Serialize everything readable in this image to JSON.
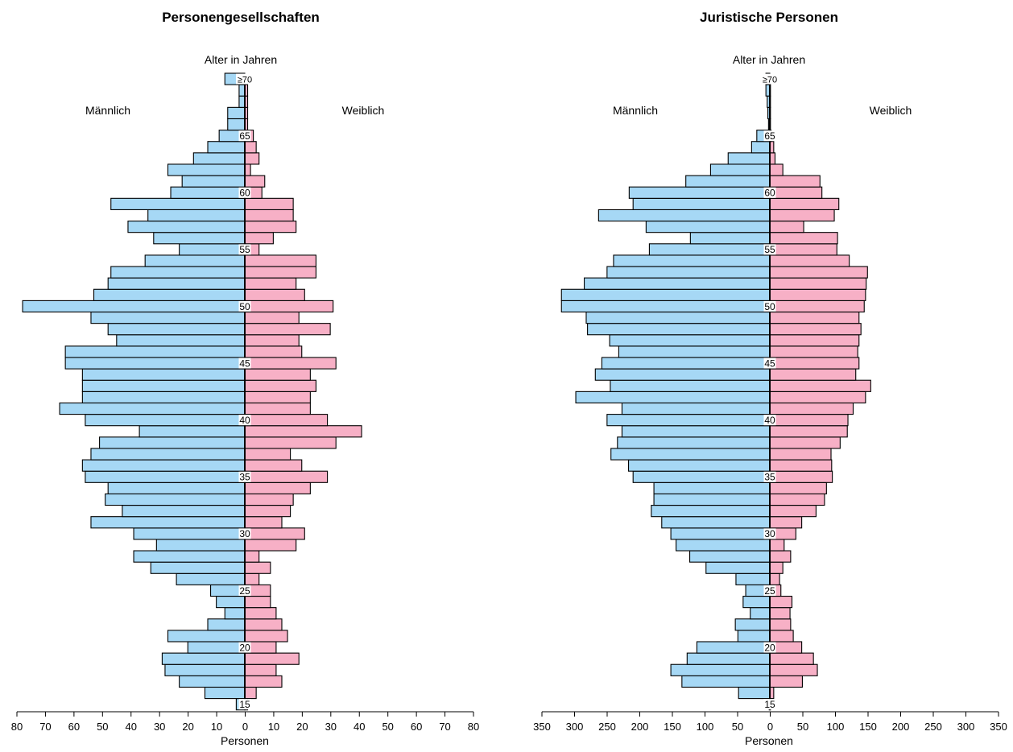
{
  "chart_data": [
    {
      "type": "bar",
      "orientation": "population-pyramid",
      "title": "Personengesellschaften",
      "age_axis_label": "Alter in Jahren",
      "left_label": "Männlich",
      "right_label": "Weiblich",
      "xlabel": "Personen",
      "xlim": [
        -80,
        80
      ],
      "x_ticks": [
        80,
        70,
        60,
        50,
        40,
        30,
        20,
        10,
        0,
        10,
        20,
        30,
        40,
        50,
        60,
        70,
        80
      ],
      "age_tick_labels": [
        {
          "age": 15,
          "text": "15"
        },
        {
          "age": 20,
          "text": "20"
        },
        {
          "age": 25,
          "text": "25"
        },
        {
          "age": 30,
          "text": "30"
        },
        {
          "age": 35,
          "text": "35"
        },
        {
          "age": 40,
          "text": "40"
        },
        {
          "age": 45,
          "text": "45"
        },
        {
          "age": 50,
          "text": "50"
        },
        {
          "age": 55,
          "text": "55"
        },
        {
          "age": 60,
          "text": "60"
        },
        {
          "age": 65,
          "text": "65"
        },
        {
          "age": 70,
          "text": "≥70"
        }
      ],
      "male_color": "#a6d8f5",
      "female_color": "#f7b0c6",
      "categories": [
        15,
        16,
        17,
        18,
        19,
        20,
        21,
        22,
        23,
        24,
        25,
        26,
        27,
        28,
        29,
        30,
        31,
        32,
        33,
        34,
        35,
        36,
        37,
        38,
        39,
        40,
        41,
        42,
        43,
        44,
        45,
        46,
        47,
        48,
        49,
        50,
        51,
        52,
        53,
        54,
        55,
        56,
        57,
        58,
        59,
        60,
        61,
        62,
        63,
        64,
        65,
        66,
        67,
        68,
        69,
        70
      ],
      "series": [
        {
          "name": "Männlich",
          "values": [
            3,
            14,
            23,
            28,
            29,
            20,
            27,
            13,
            7,
            10,
            12,
            24,
            33,
            39,
            31,
            39,
            54,
            43,
            49,
            48,
            56,
            57,
            54,
            51,
            37,
            56,
            65,
            57,
            57,
            57,
            63,
            63,
            45,
            48,
            54,
            78,
            53,
            48,
            47,
            35,
            23,
            32,
            41,
            34,
            47,
            26,
            22,
            27,
            18,
            13,
            9,
            6,
            6,
            2,
            2,
            7
          ]
        },
        {
          "name": "Weiblich",
          "values": [
            1,
            4,
            13,
            11,
            19,
            11,
            15,
            13,
            11,
            9,
            9,
            5,
            9,
            5,
            18,
            21,
            13,
            16,
            17,
            23,
            29,
            20,
            16,
            32,
            41,
            29,
            23,
            23,
            25,
            23,
            32,
            20,
            19,
            30,
            19,
            31,
            21,
            18,
            25,
            25,
            5,
            10,
            18,
            17,
            17,
            6,
            7,
            2,
            5,
            4,
            3,
            1,
            1,
            1,
            1,
            0
          ]
        }
      ]
    },
    {
      "type": "bar",
      "orientation": "population-pyramid",
      "title": "Juristische Personen",
      "age_axis_label": "Alter in Jahren",
      "left_label": "Männlich",
      "right_label": "Weiblich",
      "xlabel": "Personen",
      "xlim": [
        -350,
        350
      ],
      "x_ticks": [
        350,
        300,
        250,
        200,
        150,
        100,
        50,
        0,
        50,
        100,
        150,
        200,
        250,
        300,
        350
      ],
      "age_tick_labels": [
        {
          "age": 15,
          "text": "15"
        },
        {
          "age": 20,
          "text": "20"
        },
        {
          "age": 25,
          "text": "25"
        },
        {
          "age": 30,
          "text": "30"
        },
        {
          "age": 35,
          "text": "35"
        },
        {
          "age": 40,
          "text": "40"
        },
        {
          "age": 45,
          "text": "45"
        },
        {
          "age": 50,
          "text": "50"
        },
        {
          "age": 55,
          "text": "55"
        },
        {
          "age": 60,
          "text": "60"
        },
        {
          "age": 65,
          "text": "65"
        },
        {
          "age": 70,
          "text": "≥70"
        }
      ],
      "male_color": "#a6d8f5",
      "female_color": "#f7b0c6",
      "categories": [
        15,
        16,
        17,
        18,
        19,
        20,
        21,
        22,
        23,
        24,
        25,
        26,
        27,
        28,
        29,
        30,
        31,
        32,
        33,
        34,
        35,
        36,
        37,
        38,
        39,
        40,
        41,
        42,
        43,
        44,
        45,
        46,
        47,
        48,
        49,
        50,
        51,
        52,
        53,
        54,
        55,
        56,
        57,
        58,
        59,
        60,
        61,
        62,
        63,
        64,
        65,
        66,
        67,
        68,
        69,
        70
      ],
      "series": [
        {
          "name": "Männlich",
          "values": [
            1,
            48,
            135,
            152,
            127,
            112,
            49,
            53,
            30,
            41,
            37,
            52,
            98,
            123,
            144,
            152,
            166,
            182,
            178,
            178,
            210,
            217,
            244,
            234,
            227,
            250,
            227,
            298,
            245,
            268,
            258,
            232,
            246,
            280,
            282,
            320,
            320,
            285,
            250,
            240,
            185,
            122,
            190,
            263,
            210,
            216,
            129,
            91,
            64,
            28,
            20,
            2,
            3,
            4,
            6,
            6
          ]
        },
        {
          "name": "Weiblich",
          "values": [
            1,
            6,
            50,
            73,
            67,
            49,
            36,
            32,
            31,
            34,
            17,
            15,
            20,
            32,
            22,
            40,
            49,
            71,
            84,
            87,
            96,
            95,
            94,
            108,
            119,
            120,
            128,
            147,
            155,
            132,
            137,
            135,
            137,
            140,
            137,
            145,
            147,
            148,
            150,
            122,
            103,
            104,
            52,
            99,
            106,
            80,
            77,
            20,
            8,
            6,
            2,
            1,
            1,
            1,
            1,
            0
          ]
        }
      ]
    }
  ]
}
